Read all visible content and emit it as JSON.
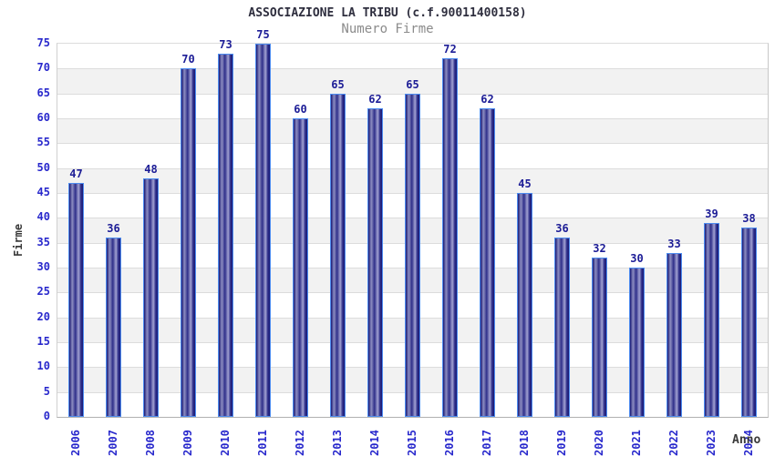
{
  "chart_data": {
    "type": "bar",
    "title": "ASSOCIAZIONE LA TRIBU (c.f.90011400158)",
    "subtitle": "Numero Firme",
    "xlabel": "Anno",
    "ylabel": "Firme",
    "categories": [
      "2006",
      "2007",
      "2008",
      "2009",
      "2010",
      "2011",
      "2012",
      "2013",
      "2014",
      "2015",
      "2016",
      "2017",
      "2018",
      "2019",
      "2020",
      "2021",
      "2022",
      "2023",
      "2024"
    ],
    "values": [
      47,
      36,
      48,
      70,
      73,
      75,
      60,
      65,
      62,
      65,
      72,
      62,
      45,
      36,
      32,
      30,
      33,
      39,
      38
    ],
    "ylim": [
      0,
      75
    ],
    "ytick_step": 5,
    "yticks": [
      0,
      5,
      10,
      15,
      20,
      25,
      30,
      35,
      40,
      45,
      50,
      55,
      60,
      65,
      70,
      75
    ],
    "grid": "horizontal-bands",
    "legend": "none",
    "colors": {
      "bar_border": "#4d8cf0",
      "bar_dark": "#191974",
      "bar_light": "#a2a2d2",
      "value_label": "#1c1c96",
      "tick_label": "#2828cc",
      "title": "#2e2e3e",
      "subtitle": "#8b8b8b",
      "axis_label": "#3a3a3a",
      "gridline": "#dcdcdc",
      "band_gray": "#f2f2f2",
      "background": "#ffffff"
    }
  }
}
